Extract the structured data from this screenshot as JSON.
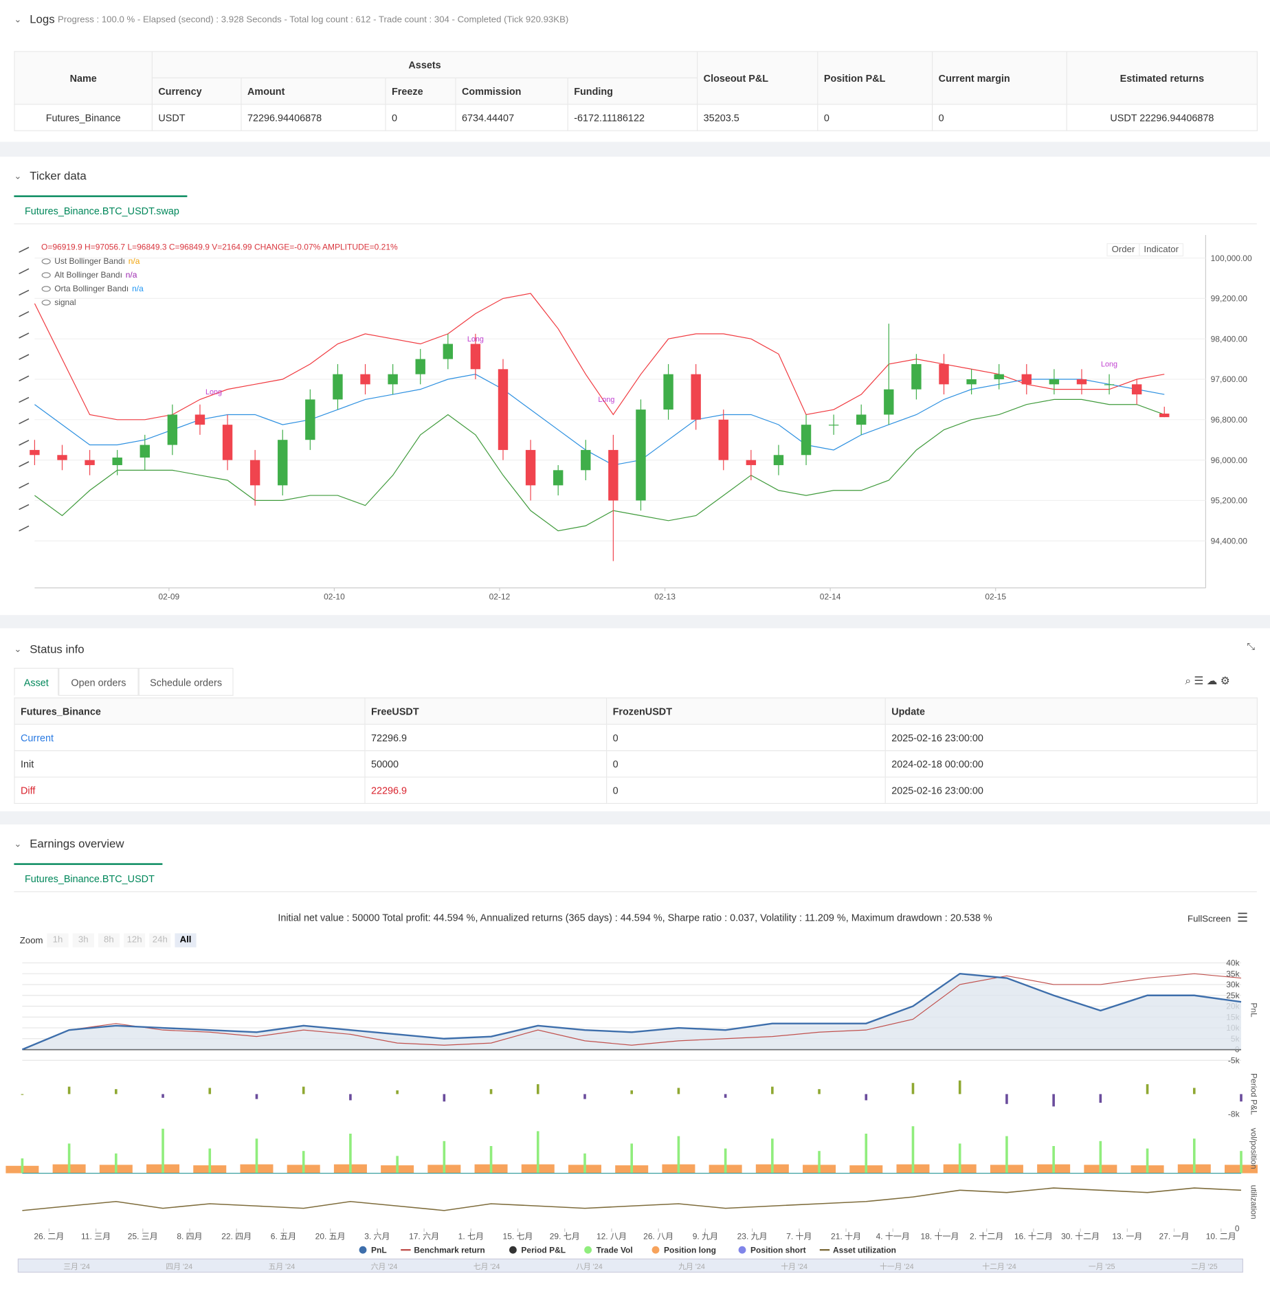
{
  "logs": {
    "title": "Logs",
    "summary": "Progress : 100.0 % - Elapsed (second) : 3.928  Seconds - Total log count : 612 - Trade count : 304 - Completed (Tick 920.93KB)",
    "group_header": "Assets",
    "headers": [
      "Name",
      "Currency",
      "Amount",
      "Freeze",
      "Commission",
      "Funding",
      "Closeout P&L",
      "Position P&L",
      "Current margin",
      "Estimated returns"
    ],
    "row": [
      "Futures_Binance",
      "USDT",
      "72296.94406878",
      "0",
      "6734.44407",
      "-6172.11186122",
      "35203.5",
      "0",
      "0",
      "USDT 22296.94406878"
    ]
  },
  "ticker": {
    "title": "Ticker data",
    "tab": "Futures_Binance.BTC_USDT.swap",
    "buttons": [
      "Order",
      "Indicator"
    ],
    "chart_data": {
      "type": "candlestick",
      "ohlc_label": "O=96919.9 H=97056.7 L=96849.3 C=96849.9 V=2164.99 CHANGE=-0.07% AMPLITUDE=0.21%",
      "xlim": [
        0,
        170
      ],
      "ylim": [
        93470,
        100375
      ],
      "xticks": [
        {
          "value": 19.5,
          "label": "02-09"
        },
        {
          "value": 43.5,
          "label": "02-10"
        },
        {
          "value": 67.5,
          "label": "02-12"
        },
        {
          "value": 91.5,
          "label": "02-13"
        },
        {
          "value": 115.5,
          "label": "02-14"
        },
        {
          "value": 139.5,
          "label": "02-15"
        }
      ],
      "yticks": [
        {
          "value": 94400,
          "label": "94,400.00"
        },
        {
          "value": 95200,
          "label": "95,200.00"
        },
        {
          "value": 96000,
          "label": "96,000.00"
        },
        {
          "value": 96800,
          "label": "96,800.00"
        },
        {
          "value": 97600,
          "label": "97,600.00"
        },
        {
          "value": 98400,
          "label": "98,400.00"
        },
        {
          "value": 99200,
          "label": "99,200.00"
        },
        {
          "value": 100000,
          "label": "100,000.00"
        }
      ],
      "x": [
        0,
        4,
        8,
        12,
        16,
        20,
        24,
        28,
        32,
        36,
        40,
        44,
        48,
        52,
        56,
        60,
        64,
        68,
        72,
        76,
        80,
        84,
        88,
        92,
        96,
        100,
        104,
        108,
        112,
        116,
        120,
        124,
        128,
        132,
        136,
        140,
        144,
        148,
        152,
        156,
        160,
        164
      ],
      "open": [
        96200,
        96100,
        96000,
        95900,
        96050,
        96300,
        96900,
        96700,
        96000,
        95500,
        96400,
        97200,
        97700,
        97500,
        97700,
        98000,
        98300,
        97800,
        96200,
        95500,
        95800,
        96200,
        95200,
        97000,
        97700,
        96800,
        96000,
        95900,
        96100,
        96700,
        96700,
        96900,
        97400,
        97900,
        97500,
        97600,
        97700,
        97500,
        97600,
        97500,
        97500,
        96919.9
      ],
      "high": [
        96400,
        96300,
        96200,
        96200,
        96500,
        97100,
        97100,
        96900,
        96200,
        96600,
        97400,
        97900,
        97900,
        97900,
        98200,
        98500,
        98500,
        98000,
        96400,
        95900,
        96400,
        96500,
        97200,
        97900,
        97900,
        97000,
        96200,
        96300,
        96900,
        96900,
        97100,
        98700,
        98100,
        98100,
        97800,
        97900,
        97900,
        97800,
        97800,
        97700,
        97600,
        97056.7
      ],
      "low": [
        95900,
        95800,
        95700,
        95700,
        95800,
        96100,
        96500,
        95800,
        95100,
        95300,
        96200,
        97000,
        97300,
        97300,
        97500,
        97800,
        97600,
        96000,
        95200,
        95300,
        95600,
        94000,
        95000,
        96800,
        96600,
        95800,
        95600,
        95700,
        95900,
        96500,
        96500,
        96700,
        97200,
        97300,
        97300,
        97400,
        97300,
        97300,
        97300,
        97300,
        97100,
        96849.3
      ],
      "close": [
        96100,
        96000,
        95900,
        96050,
        96300,
        96900,
        96700,
        96000,
        95500,
        96400,
        97200,
        97700,
        97500,
        97700,
        98000,
        98300,
        97800,
        96200,
        95500,
        95800,
        96200,
        95200,
        97000,
        97700,
        96800,
        96000,
        95900,
        96100,
        96700,
        96700,
        96900,
        97400,
        97900,
        97500,
        97600,
        97700,
        97500,
        97600,
        97500,
        97500,
        97300,
        96849.9
      ],
      "up_color": "#3fae49",
      "down_color": "#f0444e",
      "series": [
        {
          "name": "Ust Bollinger Bandı",
          "status": "n/a",
          "status_color": "#f0a30a",
          "color": "#f0383e",
          "values": [
            99100,
            98000,
            96900,
            96800,
            96800,
            96900,
            97200,
            97400,
            97500,
            97600,
            97900,
            98300,
            98500,
            98400,
            98300,
            98500,
            98900,
            99200,
            99300,
            98600,
            97700,
            96900,
            97700,
            98400,
            98500,
            98500,
            98400,
            98100,
            96900,
            97000,
            97300,
            97900,
            98000,
            97900,
            97800,
            97700,
            97500,
            97400,
            97400,
            97400,
            97600,
            97700
          ]
        },
        {
          "name": "Alt Bollinger Bandı",
          "status": "n/a",
          "status_color": "#9c27b0",
          "color": "#3e9a3a",
          "values": [
            95300,
            94900,
            95400,
            95800,
            95800,
            95800,
            95700,
            95600,
            95200,
            95200,
            95300,
            95300,
            95100,
            95700,
            96500,
            96900,
            96500,
            95700,
            95000,
            94600,
            94700,
            95000,
            94900,
            94800,
            94900,
            95300,
            95700,
            95400,
            95300,
            95400,
            95400,
            95600,
            96200,
            96600,
            96800,
            96900,
            97100,
            97200,
            97200,
            97100,
            97100,
            96900
          ]
        },
        {
          "name": "Orta Bollinger Bandı",
          "status": "n/a",
          "status_color": "#2196f3",
          "color": "#2b8fe0",
          "values": [
            97100,
            96700,
            96300,
            96300,
            96400,
            96600,
            96800,
            96900,
            96900,
            96700,
            96800,
            97000,
            97200,
            97300,
            97400,
            97600,
            97700,
            97400,
            97000,
            96600,
            96200,
            95900,
            96000,
            96400,
            96800,
            96900,
            96900,
            96700,
            96300,
            96200,
            96500,
            96700,
            96900,
            97200,
            97400,
            97500,
            97600,
            97600,
            97600,
            97500,
            97400,
            97300
          ]
        }
      ],
      "signal": {
        "name": "signal",
        "color": "#c040d0",
        "annotations": [
          {
            "label": "Long",
            "x": 26,
            "y": 97300
          },
          {
            "label": "Long",
            "x": 64,
            "y": 98350
          },
          {
            "label": "Long",
            "x": 83,
            "y": 97150
          },
          {
            "label": "Long",
            "x": 156,
            "y": 97850
          }
        ]
      }
    }
  },
  "status": {
    "title": "Status info",
    "tabs": [
      "Asset",
      "Open orders",
      "Schedule orders"
    ],
    "tab_active": 0,
    "headers": [
      "Futures_Binance",
      "FreeUSDT",
      "FrozenUSDT",
      "Update"
    ],
    "rows": [
      [
        "Current",
        "72296.9",
        "0",
        "2025-02-16 23:00:00"
      ],
      [
        "Init",
        "50000",
        "0",
        "2024-02-18 00:00:00"
      ],
      [
        "Diff",
        "22296.9",
        "0",
        "2025-02-16 23:00:00"
      ]
    ]
  },
  "earnings": {
    "title": "Earnings overview",
    "tab": "Futures_Binance.BTC_USDT",
    "summary": "Initial net value : 50000  Total profit: 44.594 %, Annualized returns (365 days) : 44.594 %, Sharpe ratio : 0.037, Volatility : 11.209 %, Maximum drawdown : 20.538 %",
    "zoom_label": "Zoom",
    "zoom": [
      "1h",
      "3h",
      "8h",
      "12h",
      "24h",
      "All"
    ],
    "zoom_active": 5,
    "fullscreen": "FullScreen",
    "chart_data": {
      "type": "line",
      "xlim": [
        0,
        364
      ],
      "ylim": [
        -6500,
        43000
      ],
      "yticks": [
        {
          "value": 40000,
          "label": "40k"
        },
        {
          "value": 35000,
          "label": "35k"
        },
        {
          "value": 30000,
          "label": "30k"
        },
        {
          "value": 25000,
          "label": "25k"
        },
        {
          "value": 20000,
          "label": "20k"
        },
        {
          "value": 15000,
          "label": "15k"
        },
        {
          "value": 10000,
          "label": "10k"
        },
        {
          "value": 5000,
          "label": "5k"
        },
        0,
        {
          "value": -5000,
          "label": "-5k"
        }
      ],
      "xticks": [
        {
          "value": 8,
          "label": "26. 二月"
        },
        {
          "value": 22,
          "label": "11. 三月"
        },
        {
          "value": 36,
          "label": "25. 三月"
        },
        {
          "value": 50,
          "label": "8. 四月"
        },
        {
          "value": 64,
          "label": "22. 四月"
        },
        {
          "value": 78,
          "label": "6. 五月"
        },
        {
          "value": 92,
          "label": "20. 五月"
        },
        {
          "value": 106,
          "label": "3. 六月"
        },
        {
          "value": 120,
          "label": "17. 六月"
        },
        {
          "value": 134,
          "label": "1. 七月"
        },
        {
          "value": 148,
          "label": "15. 七月"
        },
        {
          "value": 162,
          "label": "29. 七月"
        },
        {
          "value": 176,
          "label": "12. 八月"
        },
        {
          "value": 190,
          "label": "26. 八月"
        },
        {
          "value": 204,
          "label": "9. 九月"
        },
        {
          "value": 218,
          "label": "23. 九月"
        },
        {
          "value": 232,
          "label": "7. 十月"
        },
        {
          "value": 246,
          "label": "21. 十月"
        },
        {
          "value": 260,
          "label": "4. 十一月"
        },
        {
          "value": 274,
          "label": "18. 十一月"
        },
        {
          "value": 288,
          "label": "2. 十二月"
        },
        {
          "value": 302,
          "label": "16. 十二月"
        },
        {
          "value": 316,
          "label": "30. 十二月"
        },
        {
          "value": 330,
          "label": "13. 一月"
        },
        {
          "value": 344,
          "label": "27. 一月"
        },
        {
          "value": 358,
          "label": "10. 二月"
        }
      ],
      "axis_titles": [
        "PnL",
        "Period P&L",
        "vol/position",
        "utilization"
      ],
      "p2lim": [
        -10000,
        10000
      ],
      "p2ticks": [
        {
          "value": -8000,
          "label": "-8k"
        }
      ],
      "p3lim": [
        0,
        100
      ],
      "p4lim": [
        0,
        1.1
      ],
      "p4ticks": [
        0
      ],
      "x": [
        0,
        14,
        28,
        42,
        56,
        70,
        84,
        98,
        112,
        126,
        140,
        154,
        168,
        182,
        196,
        210,
        224,
        238,
        252,
        266,
        280,
        294,
        308,
        322,
        336,
        350,
        364
      ],
      "pnl": [
        0,
        9000,
        11000,
        10000,
        9000,
        8000,
        11000,
        9000,
        7000,
        5000,
        6000,
        11000,
        9000,
        8000,
        10000,
        9000,
        12000,
        12000,
        12000,
        20000,
        35000,
        33000,
        25000,
        18000,
        25000,
        25000,
        22000
      ],
      "benchmark": [
        0,
        9000,
        12000,
        9000,
        8000,
        6000,
        9000,
        7000,
        3000,
        2000,
        3000,
        9000,
        4000,
        2000,
        4000,
        5000,
        6000,
        8000,
        9000,
        14000,
        30000,
        34000,
        30000,
        30000,
        33000,
        35000,
        33000
      ],
      "period_pnl": [
        0,
        3000,
        2000,
        -1500,
        2500,
        -2000,
        3000,
        -2500,
        1500,
        -3000,
        2000,
        4000,
        -2000,
        1500,
        2500,
        -1500,
        3000,
        2000,
        -2500,
        4500,
        5500,
        -4000,
        -5000,
        -3500,
        4000,
        2500,
        -3000
      ],
      "trade_vol": [
        30,
        60,
        40,
        90,
        50,
        70,
        45,
        80,
        35,
        65,
        55,
        85,
        40,
        60,
        75,
        50,
        70,
        45,
        80,
        95,
        60,
        75,
        55,
        65,
        50,
        70,
        45
      ],
      "position_long": [
        15,
        18,
        17,
        18,
        16,
        18,
        17,
        18,
        16,
        17,
        18,
        18,
        17,
        16,
        18,
        17,
        18,
        17,
        16,
        18,
        18,
        17,
        18,
        17,
        16,
        18,
        17
      ],
      "utilization": [
        0.4,
        0.5,
        0.6,
        0.45,
        0.55,
        0.5,
        0.45,
        0.6,
        0.5,
        0.4,
        0.55,
        0.5,
        0.45,
        0.5,
        0.55,
        0.45,
        0.5,
        0.55,
        0.6,
        0.7,
        0.85,
        0.8,
        0.9,
        0.85,
        0.8,
        0.9,
        0.85
      ],
      "legend": [
        {
          "name": "PnL",
          "color": "#3d6eab"
        },
        {
          "name": "Benchmark return",
          "color": "#c0504d"
        },
        {
          "name": "Period P&L",
          "color": "#333333"
        },
        {
          "name": "Trade Vol",
          "color": "#90ed7d"
        },
        {
          "name": "Position long",
          "color": "#f7a35c"
        },
        {
          "name": "Position short",
          "color": "#8085e9"
        },
        {
          "name": "Asset utilization",
          "color": "#7d6b3a"
        }
      ],
      "navigator": [
        "三月 '24",
        "四月 '24",
        "五月 '24",
        "六月 '24",
        "七月 '24",
        "八月 '24",
        "九月 '24",
        "十月 '24",
        "十一月 '24",
        "十二月 '24",
        "一月 '25",
        "二月 '25"
      ]
    }
  }
}
